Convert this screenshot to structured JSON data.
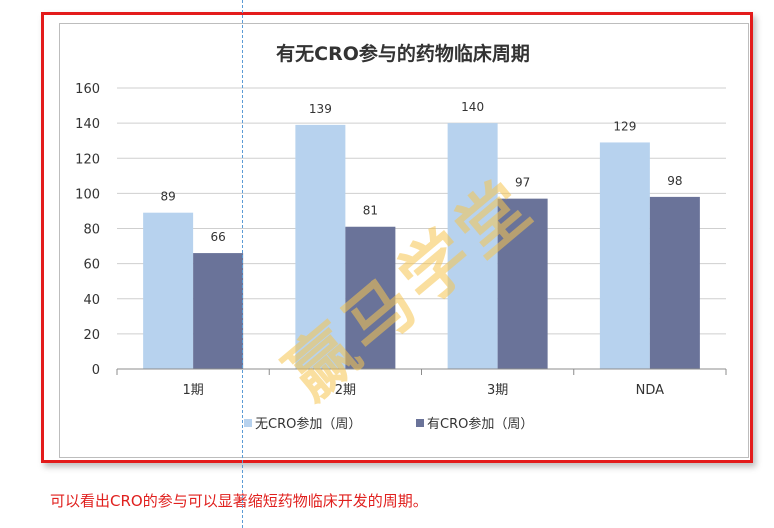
{
  "chart_data": {
    "type": "bar",
    "title": "有无CRO参与的药物临床周期",
    "categories": [
      "1期",
      "2期",
      "3期",
      "NDA"
    ],
    "series": [
      {
        "name": "无CRO参加（周）",
        "color": "#b7d2ee",
        "values": [
          89,
          139,
          140,
          129
        ]
      },
      {
        "name": "有CRO参加（周）",
        "color": "#6a7399",
        "values": [
          66,
          81,
          97,
          98
        ]
      }
    ],
    "ylim": [
      0,
      160
    ],
    "yticks": [
      0,
      20,
      40,
      60,
      80,
      100,
      120,
      140,
      160
    ],
    "grid": true,
    "legend": "bottom",
    "data_labels": true
  },
  "watermark": "赢马学堂",
  "caption": "可以看出CRO的参与可以显著缩短药物临床开发的周期。"
}
